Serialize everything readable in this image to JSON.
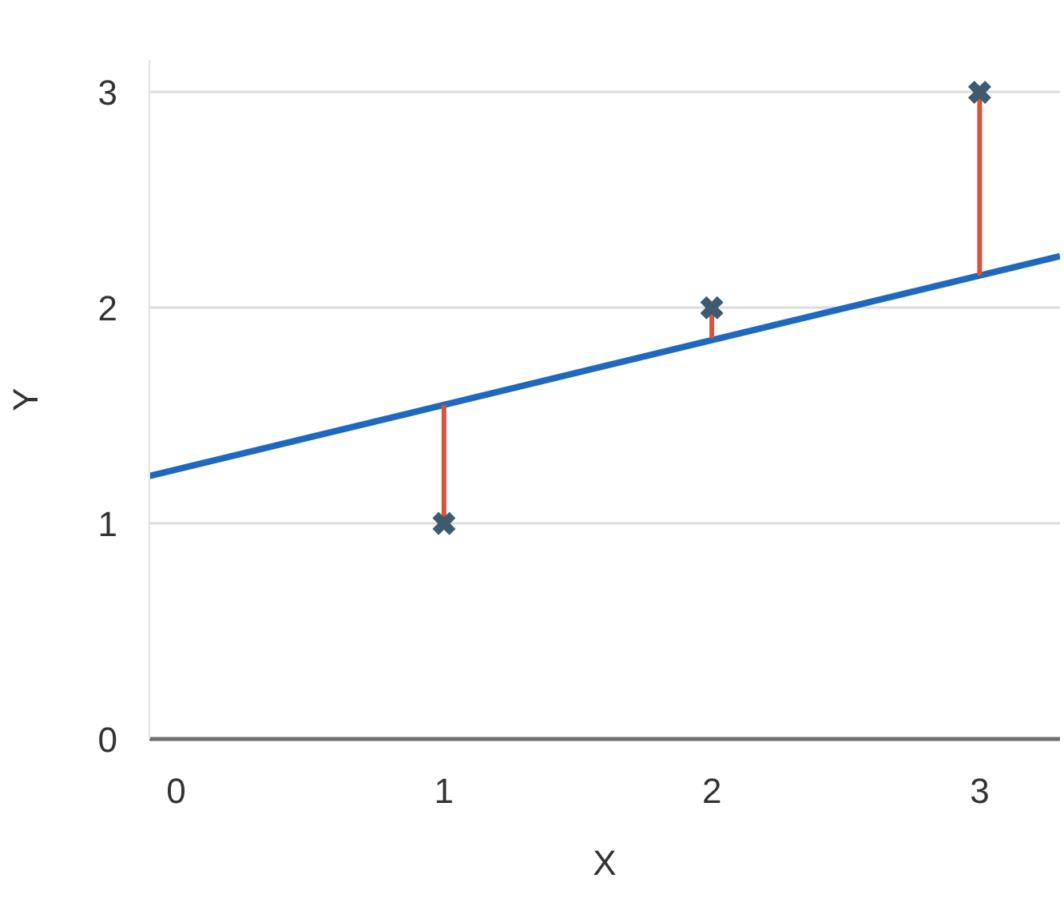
{
  "chart_data": {
    "type": "scatter",
    "xlabel": "X",
    "ylabel": "Y",
    "xlim": [
      -0.1,
      3.3
    ],
    "ylim": [
      0,
      3.15
    ],
    "xticks": [
      0,
      1,
      2,
      3
    ],
    "yticks": [
      0,
      1,
      2,
      3
    ],
    "grid": "y",
    "series": [
      {
        "type": "line",
        "color": "#1f68bd",
        "x": [
          -0.1,
          3.3
        ],
        "values": [
          1.22,
          2.24
        ],
        "marker": "none",
        "line_style": "solid"
      },
      {
        "type": "line",
        "color": "#d2553c",
        "x": [
          1,
          1
        ],
        "values": [
          1,
          1.55
        ],
        "marker": "none",
        "line_style": "solid"
      },
      {
        "type": "line",
        "color": "#d2553c",
        "x": [
          2,
          2
        ],
        "values": [
          2,
          1.86
        ],
        "marker": "none",
        "line_style": "solid"
      },
      {
        "type": "line",
        "color": "#d2553c",
        "x": [
          3,
          3
        ],
        "values": [
          3,
          2.15
        ],
        "marker": "none",
        "line_style": "solid"
      },
      {
        "color": "#3e5a6e",
        "x": [
          1,
          2,
          3
        ],
        "values": [
          1,
          2,
          3
        ],
        "marker": "cross"
      }
    ]
  }
}
